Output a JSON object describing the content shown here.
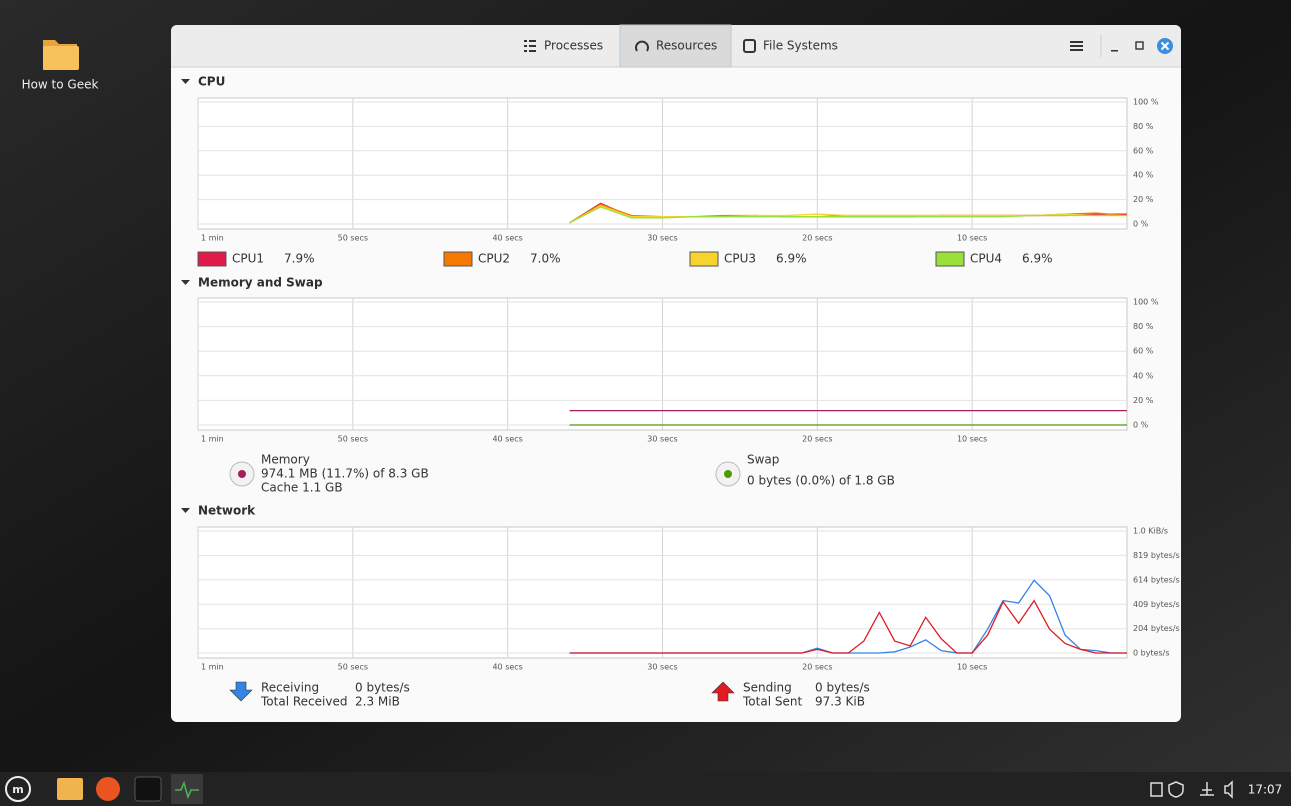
{
  "desktop_icon": "How to Geek",
  "tabs": [
    "Processes",
    "Resources",
    "File Systems"
  ],
  "clock": "17:07",
  "sections": [
    {
      "title": "CPU",
      "chart": {
        "type": "line",
        "x": [
          36,
          34,
          32,
          30,
          28,
          26,
          24,
          22,
          20,
          18,
          16,
          14,
          12,
          10,
          8,
          6,
          4,
          2,
          0
        ],
        "xlim": [
          60,
          0
        ],
        "xticks": [
          {
            "value": 60,
            "label": "1 min"
          },
          {
            "value": 50,
            "label": "50 secs"
          },
          {
            "value": 40,
            "label": "40 secs"
          },
          {
            "value": 30,
            "label": "30 secs"
          },
          {
            "value": 20,
            "label": "20 secs"
          },
          {
            "value": 10,
            "label": "10 secs"
          }
        ],
        "ylim": [
          0,
          100
        ],
        "yticks": [
          {
            "value": 0,
            "label": "0 %"
          },
          {
            "value": 20,
            "label": "20 %"
          },
          {
            "value": 40,
            "label": "40 %"
          },
          {
            "value": 60,
            "label": "60 %"
          },
          {
            "value": 80,
            "label": "80 %"
          },
          {
            "value": 100,
            "label": "100 %"
          }
        ],
        "grid": true,
        "series": [
          {
            "name": "CPU1",
            "color": "#e01b4c",
            "current": "7.9%",
            "values": [
              1,
              17,
              6,
              6,
              6,
              6,
              7,
              6,
              6,
              6,
              6,
              6,
              7,
              7,
              7,
              7,
              7,
              8,
              8
            ]
          },
          {
            "name": "CPU2",
            "color": "#f57900",
            "current": "7.0%",
            "values": [
              1,
              16,
              7,
              6,
              6,
              7,
              7,
              6,
              6,
              7,
              7,
              7,
              7,
              7,
              7,
              7,
              8,
              9,
              7
            ]
          },
          {
            "name": "CPU3",
            "color": "#f6d32d",
            "current": "6.9%",
            "values": [
              1,
              15,
              6,
              6,
              6,
              6,
              7,
              7,
              8,
              7,
              7,
              7,
              7,
              7,
              7,
              7,
              8,
              7,
              7
            ]
          },
          {
            "name": "CPU4",
            "color": "#9be03a",
            "current": "6.9%",
            "values": [
              1,
              14,
              5,
              5,
              6,
              6,
              6,
              6,
              6,
              6,
              6,
              6,
              6,
              6,
              6,
              7,
              7,
              7,
              7
            ]
          }
        ]
      }
    },
    {
      "title": "Memory and Swap",
      "chart": {
        "type": "line",
        "x": [
          36,
          34,
          32,
          30,
          28,
          26,
          24,
          22,
          20,
          18,
          16,
          14,
          12,
          10,
          8,
          6,
          4,
          2,
          0
        ],
        "xlim": [
          60,
          0
        ],
        "xticks": [
          {
            "value": 60,
            "label": "1 min"
          },
          {
            "value": 50,
            "label": "50 secs"
          },
          {
            "value": 40,
            "label": "40 secs"
          },
          {
            "value": 30,
            "label": "30 secs"
          },
          {
            "value": 20,
            "label": "20 secs"
          },
          {
            "value": 10,
            "label": "10 secs"
          }
        ],
        "ylim": [
          0,
          100
        ],
        "yticks": [
          {
            "value": 0,
            "label": "0 %"
          },
          {
            "value": 20,
            "label": "20 %"
          },
          {
            "value": 40,
            "label": "40 %"
          },
          {
            "value": 60,
            "label": "60 %"
          },
          {
            "value": 80,
            "label": "80 %"
          },
          {
            "value": 100,
            "label": "100 %"
          }
        ],
        "grid": true,
        "series": [
          {
            "name": "Memory",
            "color": "#a51d5c",
            "details": [
              "974.1 MB (11.7%) of 8.3 GB",
              "Cache 1.1 GB"
            ],
            "values": [
              11.7,
              11.7,
              11.7,
              11.7,
              11.7,
              11.7,
              11.7,
              11.7,
              11.7,
              11.7,
              11.7,
              11.7,
              11.7,
              11.7,
              11.7,
              11.7,
              11.7,
              11.7,
              11.7
            ]
          },
          {
            "name": "Swap",
            "color": "#4e9a06",
            "details": [
              "0 bytes (0.0%) of 1.8 GB"
            ],
            "values": [
              0,
              0,
              0,
              0,
              0,
              0,
              0,
              0,
              0,
              0,
              0,
              0,
              0,
              0,
              0,
              0,
              0,
              0,
              0
            ]
          }
        ]
      }
    },
    {
      "title": "Network",
      "chart": {
        "type": "line",
        "x": [
          36,
          35,
          34,
          33,
          32,
          31,
          30,
          29,
          28,
          27,
          26,
          25,
          24,
          23,
          22,
          21,
          20,
          19,
          18,
          17,
          16,
          15,
          14,
          13,
          12,
          11,
          10,
          9,
          8,
          7,
          6,
          5,
          4,
          3,
          2,
          1,
          0
        ],
        "xlim": [
          60,
          0
        ],
        "xticks": [
          {
            "value": 60,
            "label": "1 min"
          },
          {
            "value": 50,
            "label": "50 secs"
          },
          {
            "value": 40,
            "label": "40 secs"
          },
          {
            "value": 30,
            "label": "30 secs"
          },
          {
            "value": 20,
            "label": "20 secs"
          },
          {
            "value": 10,
            "label": "10 secs"
          }
        ],
        "ylim": [
          0,
          1024
        ],
        "yticks": [
          {
            "value": 0,
            "label": "0 bytes/s"
          },
          {
            "value": 204,
            "label": "204 bytes/s"
          },
          {
            "value": 409,
            "label": "409 bytes/s"
          },
          {
            "value": 614,
            "label": "614 bytes/s"
          },
          {
            "value": 819,
            "label": "819 bytes/s"
          },
          {
            "value": 1024,
            "label": "1.0 KiB/s"
          }
        ],
        "grid": true,
        "series": [
          {
            "name": "Receiving",
            "color": "#3584e4",
            "rate": "0 bytes/s",
            "total_label": "Total Received",
            "total": "2.3 MiB",
            "values": [
              0,
              0,
              0,
              0,
              0,
              0,
              0,
              0,
              0,
              0,
              0,
              0,
              0,
              0,
              0,
              0,
              40,
              0,
              0,
              0,
              0,
              10,
              50,
              110,
              20,
              0,
              0,
              200,
              440,
              420,
              610,
              480,
              150,
              30,
              20,
              0,
              0
            ]
          },
          {
            "name": "Sending",
            "color": "#e01b24",
            "rate": "0 bytes/s",
            "total_label": "Total Sent",
            "total": "97.3 KiB",
            "values": [
              0,
              0,
              0,
              0,
              0,
              0,
              0,
              0,
              0,
              0,
              0,
              0,
              0,
              0,
              0,
              0,
              30,
              0,
              0,
              100,
              340,
              100,
              60,
              300,
              120,
              0,
              0,
              150,
              430,
              250,
              440,
              200,
              80,
              30,
              0,
              0,
              0
            ]
          }
        ]
      }
    }
  ]
}
